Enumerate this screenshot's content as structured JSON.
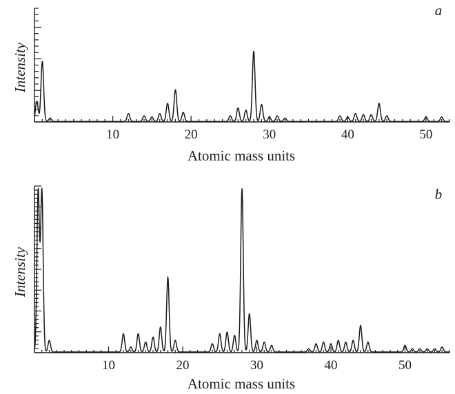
{
  "chart_data": [
    {
      "type": "line",
      "panel_label": "a",
      "xlabel": "Atomic mass units",
      "ylabel": "Intensity",
      "xlim": [
        0,
        53
      ],
      "ylim": [
        0,
        1.0
      ],
      "y_ticks_labeled": false,
      "y_minor_tick_count": 18,
      "x_ticks": [
        10,
        20,
        30,
        40,
        50
      ],
      "x_tick_labels": [
        "10",
        "20",
        "30",
        "40",
        "50"
      ],
      "grid": false,
      "legend": "none",
      "peaks": [
        {
          "x": 0.3,
          "y": 0.18
        },
        {
          "x": 1.0,
          "y": 0.53
        },
        {
          "x": 2.0,
          "y": 0.03
        },
        {
          "x": 12.0,
          "y": 0.07
        },
        {
          "x": 14.0,
          "y": 0.05
        },
        {
          "x": 15.0,
          "y": 0.04
        },
        {
          "x": 16.0,
          "y": 0.07
        },
        {
          "x": 17.0,
          "y": 0.16
        },
        {
          "x": 18.0,
          "y": 0.28
        },
        {
          "x": 19.0,
          "y": 0.08
        },
        {
          "x": 25.0,
          "y": 0.05
        },
        {
          "x": 26.0,
          "y": 0.12
        },
        {
          "x": 27.0,
          "y": 0.1
        },
        {
          "x": 28.0,
          "y": 0.62
        },
        {
          "x": 29.0,
          "y": 0.15
        },
        {
          "x": 30.0,
          "y": 0.04
        },
        {
          "x": 31.0,
          "y": 0.05
        },
        {
          "x": 32.0,
          "y": 0.03
        },
        {
          "x": 39.0,
          "y": 0.05
        },
        {
          "x": 40.0,
          "y": 0.04
        },
        {
          "x": 41.0,
          "y": 0.07
        },
        {
          "x": 42.0,
          "y": 0.06
        },
        {
          "x": 43.0,
          "y": 0.06
        },
        {
          "x": 44.0,
          "y": 0.16
        },
        {
          "x": 45.0,
          "y": 0.05
        },
        {
          "x": 50.0,
          "y": 0.04
        },
        {
          "x": 52.0,
          "y": 0.04
        }
      ]
    },
    {
      "type": "line",
      "panel_label": "b",
      "xlabel": "Atomic mass units",
      "ylabel": "Intensity",
      "xlim": [
        0,
        56
      ],
      "ylim": [
        0,
        1.0
      ],
      "y_ticks_labeled": false,
      "y_minor_tick_count": 40,
      "x_ticks": [
        10,
        20,
        30,
        40,
        50
      ],
      "x_tick_labels": [
        "10",
        "20",
        "30",
        "40",
        "50"
      ],
      "grid": false,
      "legend": "none",
      "peaks": [
        {
          "x": 0.5,
          "y": 0.97
        },
        {
          "x": 1.0,
          "y": 0.97
        },
        {
          "x": 2.0,
          "y": 0.07
        },
        {
          "x": 12.0,
          "y": 0.11
        },
        {
          "x": 13.0,
          "y": 0.03
        },
        {
          "x": 14.0,
          "y": 0.11
        },
        {
          "x": 15.0,
          "y": 0.06
        },
        {
          "x": 16.0,
          "y": 0.09
        },
        {
          "x": 17.0,
          "y": 0.15
        },
        {
          "x": 18.0,
          "y": 0.45
        },
        {
          "x": 19.0,
          "y": 0.07
        },
        {
          "x": 24.0,
          "y": 0.05
        },
        {
          "x": 25.0,
          "y": 0.11
        },
        {
          "x": 26.0,
          "y": 0.12
        },
        {
          "x": 27.0,
          "y": 0.1
        },
        {
          "x": 28.0,
          "y": 0.98
        },
        {
          "x": 29.0,
          "y": 0.23
        },
        {
          "x": 30.0,
          "y": 0.07
        },
        {
          "x": 31.0,
          "y": 0.06
        },
        {
          "x": 32.0,
          "y": 0.04
        },
        {
          "x": 37.0,
          "y": 0.02
        },
        {
          "x": 38.0,
          "y": 0.05
        },
        {
          "x": 39.0,
          "y": 0.06
        },
        {
          "x": 40.0,
          "y": 0.05
        },
        {
          "x": 41.0,
          "y": 0.07
        },
        {
          "x": 42.0,
          "y": 0.06
        },
        {
          "x": 43.0,
          "y": 0.07
        },
        {
          "x": 44.0,
          "y": 0.16
        },
        {
          "x": 45.0,
          "y": 0.06
        },
        {
          "x": 50.0,
          "y": 0.04
        },
        {
          "x": 51.0,
          "y": 0.02
        },
        {
          "x": 52.0,
          "y": 0.02
        },
        {
          "x": 53.0,
          "y": 0.02
        },
        {
          "x": 54.0,
          "y": 0.02
        },
        {
          "x": 55.0,
          "y": 0.03
        }
      ]
    }
  ]
}
